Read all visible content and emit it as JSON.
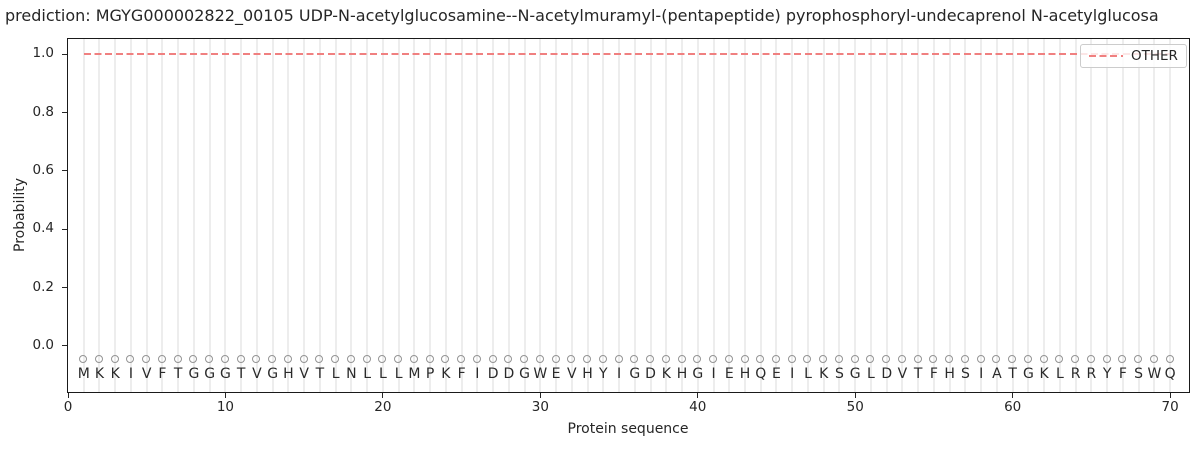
{
  "figure": {
    "title": "prediction: MGYG000002822_00105 UDP-N-acetylglucosamine--N-acetylmuramyl-(pentapeptide) pyrophosphoryl-undecaprenol N-acetylglucosa"
  },
  "axes": {
    "xlabel": "Protein sequence",
    "ylabel": "Probability"
  },
  "legend": {
    "position": "upper right",
    "entries": [
      {
        "label": "OTHER",
        "color": "#f08080",
        "linestyle": "dashed"
      }
    ]
  },
  "chart_data": {
    "type": "line",
    "title": "prediction: MGYG000002822_00105 UDP-N-acetylglucosamine--N-acetylmuramyl-(pentapeptide) pyrophosphoryl-undecaprenol N-acetylglucosa",
    "xlabel": "Protein sequence",
    "ylabel": "Probability",
    "xlim": [
      0,
      71.2
    ],
    "ylim": [
      -0.16,
      1.05
    ],
    "grid": {
      "vertical_line_at_each_residue": true,
      "horizontal": false,
      "color": "#ededed"
    },
    "legend_position": "upper right",
    "xticks": [
      {
        "value": 0,
        "label": "0"
      },
      {
        "value": 10,
        "label": "10"
      },
      {
        "value": 20,
        "label": "20"
      },
      {
        "value": 30,
        "label": "30"
      },
      {
        "value": 40,
        "label": "40"
      },
      {
        "value": 50,
        "label": "50"
      },
      {
        "value": 60,
        "label": "60"
      },
      {
        "value": 70,
        "label": "70"
      }
    ],
    "yticks": [
      {
        "value": 0.0,
        "label": "0.0"
      },
      {
        "value": 0.2,
        "label": "0.2"
      },
      {
        "value": 0.4,
        "label": "0.4"
      },
      {
        "value": 0.6,
        "label": "0.6"
      },
      {
        "value": 0.8,
        "label": "0.8"
      },
      {
        "value": 1.0,
        "label": "1.0"
      }
    ],
    "series": [
      {
        "name": "OTHER",
        "style": "dashed",
        "color": "#f08080",
        "x_start": 1,
        "x_end": 70,
        "y": 1.0,
        "note": "constant probability 1.0 across all 70 residues"
      }
    ],
    "sequence": [
      "M",
      "K",
      "K",
      "I",
      "V",
      "F",
      "T",
      "G",
      "G",
      "G",
      "T",
      "V",
      "G",
      "H",
      "V",
      "T",
      "L",
      "N",
      "L",
      "L",
      "L",
      "M",
      "P",
      "K",
      "F",
      "I",
      "D",
      "D",
      "G",
      "W",
      "E",
      "V",
      "H",
      "Y",
      "I",
      "G",
      "D",
      "K",
      "H",
      "G",
      "I",
      "E",
      "H",
      "Q",
      "E",
      "I",
      "L",
      "K",
      "S",
      "G",
      "L",
      "D",
      "V",
      "T",
      "F",
      "H",
      "S",
      "I",
      "A",
      "T",
      "G",
      "K",
      "L",
      "R",
      "R",
      "Y",
      "F",
      "S",
      "W",
      "Q"
    ],
    "sequence_markers": {
      "shape": "open-circle",
      "color": "#949494",
      "y": -0.05
    },
    "sequence_letters_y": -0.1
  },
  "colors": {
    "other_line": "#f08080",
    "gridline": "#ededed",
    "marker_circle": "#949494",
    "text": "#262626",
    "spine": "#1a1a1a",
    "legend_border": "#cccccc",
    "background": "#ffffff"
  }
}
